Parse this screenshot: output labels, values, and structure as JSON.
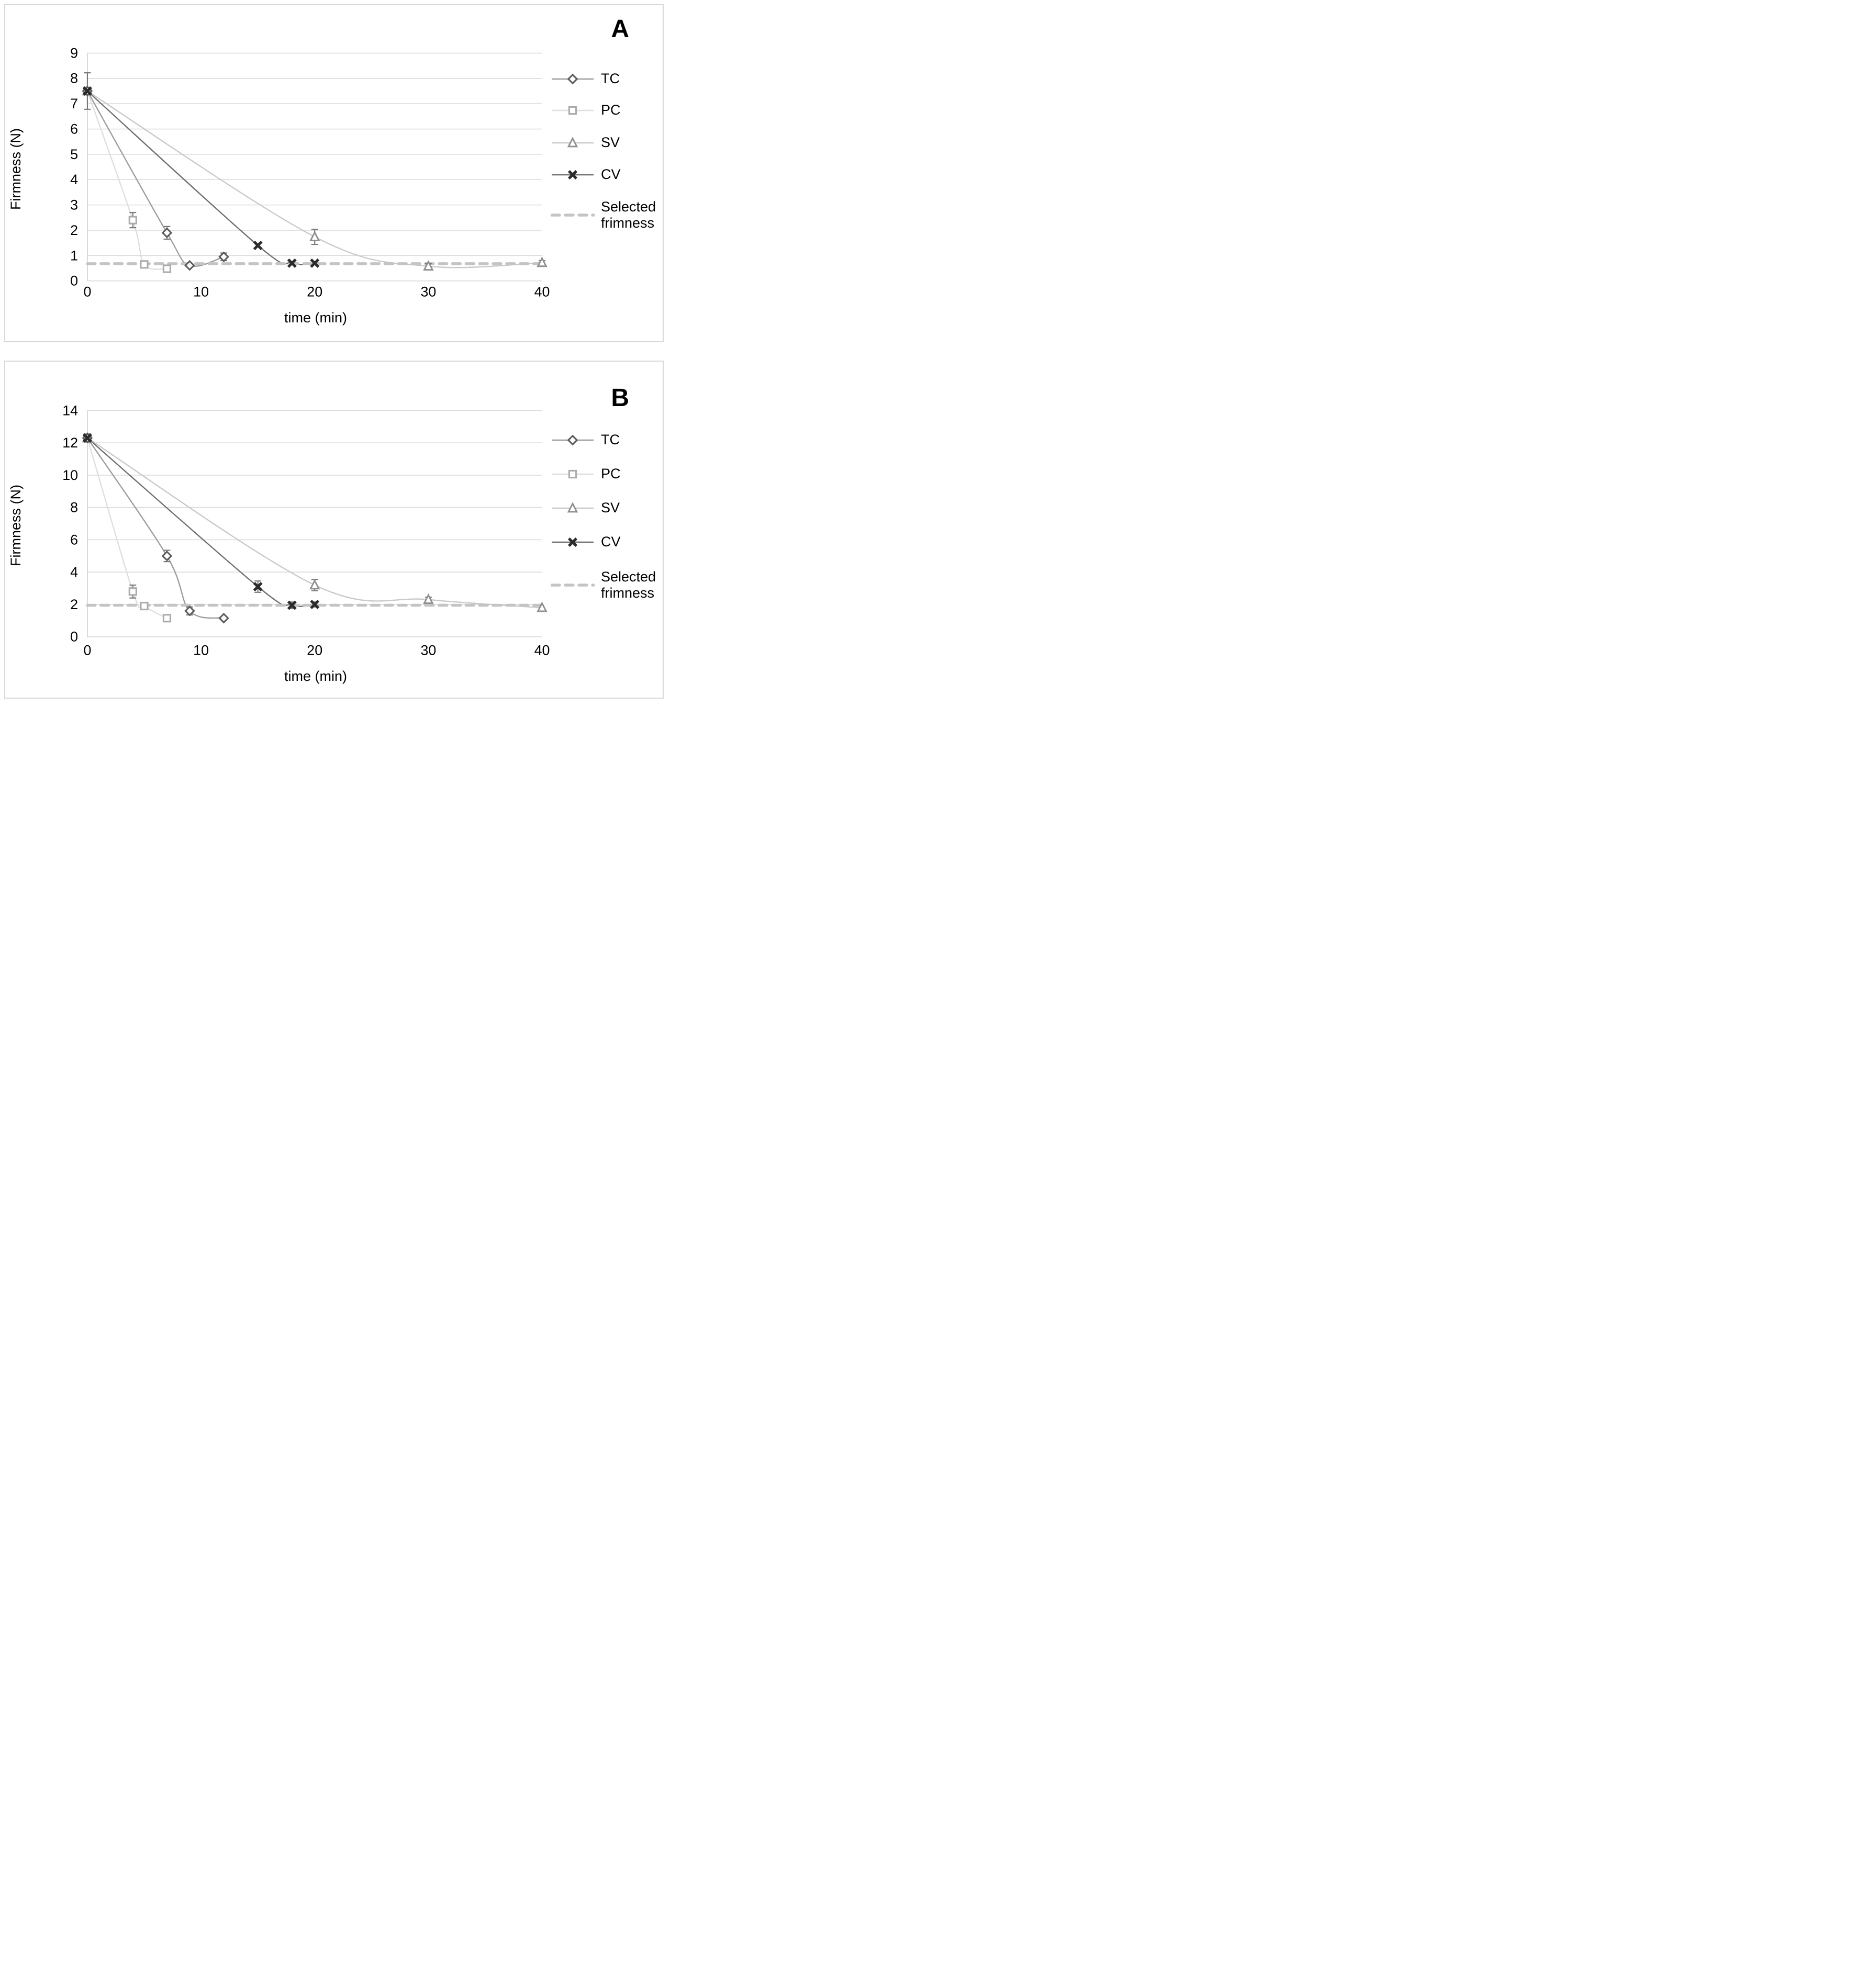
{
  "page": {
    "background": "#ffffff",
    "panel_border_color": "#d8d8d8",
    "gridline_color": "#dadada",
    "axis_line_color": "#cfcfcf",
    "error_bar_color": "#7a7a7a",
    "text_color": "#000000"
  },
  "chart_data": [
    {
      "type": "line",
      "panel_label": "A",
      "title": "",
      "xlabel": "time (min)",
      "ylabel": "Firmness (N)",
      "xlim": [
        0,
        40
      ],
      "x_ticks": [
        0,
        10,
        20,
        30,
        40
      ],
      "ylim": [
        0,
        9
      ],
      "y_ticks": [
        0,
        1,
        2,
        3,
        4,
        5,
        6,
        7,
        8,
        9
      ],
      "grid": true,
      "legend_position": "right",
      "threshold": {
        "label": "Selected frimness",
        "value": 0.68,
        "color": "#c4c4c4",
        "style": "dashed"
      },
      "series": [
        {
          "name": "TC",
          "marker": "diamond",
          "marker_color": "#5b5b5b",
          "line_color": "#9c9c9c",
          "x": [
            0,
            7,
            9,
            12
          ],
          "y": [
            7.5,
            1.9,
            0.61,
            0.95
          ],
          "yerr": [
            0,
            0.25,
            0,
            0.15
          ]
        },
        {
          "name": "PC",
          "marker": "square",
          "marker_color": "#ababab",
          "line_color": "#dedede",
          "x": [
            0,
            4,
            5,
            7
          ],
          "y": [
            7.5,
            2.4,
            0.65,
            0.48
          ],
          "yerr": [
            0,
            0.3,
            0,
            0
          ]
        },
        {
          "name": "SV",
          "marker": "triangle",
          "marker_color": "#8f8f8f",
          "line_color": "#c9c9c9",
          "x": [
            0,
            20,
            30,
            40
          ],
          "y": [
            7.5,
            1.74,
            0.58,
            0.72
          ],
          "yerr": [
            0,
            0.3,
            0.1,
            0.08
          ]
        },
        {
          "name": "CV",
          "marker": "x",
          "marker_color": "#2b2b2b",
          "line_color": "#6f6f6f",
          "x": [
            0,
            15,
            18,
            20
          ],
          "y": [
            7.5,
            1.4,
            0.7,
            0.7
          ],
          "yerr": [
            0.72,
            0,
            0,
            0
          ]
        }
      ]
    },
    {
      "type": "line",
      "panel_label": "B",
      "title": "",
      "xlabel": "time (min)",
      "ylabel": "Firmness (N)",
      "xlim": [
        0,
        40
      ],
      "x_ticks": [
        0,
        10,
        20,
        30,
        40
      ],
      "ylim": [
        0,
        14
      ],
      "y_ticks": [
        0,
        2,
        4,
        6,
        8,
        10,
        12,
        14
      ],
      "grid": true,
      "legend_position": "right",
      "threshold": {
        "label": "Selected frimness",
        "value": 1.95,
        "color": "#c4c4c4",
        "style": "dashed"
      },
      "series": [
        {
          "name": "TC",
          "marker": "diamond",
          "marker_color": "#5b5b5b",
          "line_color": "#9c9c9c",
          "x": [
            0,
            7,
            9,
            12
          ],
          "y": [
            12.3,
            5.0,
            1.6,
            1.15
          ],
          "yerr": [
            0,
            0.35,
            0.25,
            0
          ]
        },
        {
          "name": "PC",
          "marker": "square",
          "marker_color": "#ababab",
          "line_color": "#dedede",
          "x": [
            0,
            4,
            5,
            7
          ],
          "y": [
            12.3,
            2.8,
            1.9,
            1.15
          ],
          "yerr": [
            0,
            0.4,
            0,
            0
          ]
        },
        {
          "name": "SV",
          "marker": "triangle",
          "marker_color": "#8f8f8f",
          "line_color": "#c9c9c9",
          "x": [
            0,
            20,
            30,
            40
          ],
          "y": [
            12.3,
            3.2,
            2.3,
            1.8
          ],
          "yerr": [
            0,
            0.35,
            0.15,
            0
          ]
        },
        {
          "name": "CV",
          "marker": "x",
          "marker_color": "#2b2b2b",
          "line_color": "#6f6f6f",
          "x": [
            0,
            15,
            18,
            20
          ],
          "y": [
            12.3,
            3.1,
            1.95,
            2.0
          ],
          "yerr": [
            0.25,
            0.35,
            0.2,
            0.15
          ]
        }
      ]
    }
  ]
}
